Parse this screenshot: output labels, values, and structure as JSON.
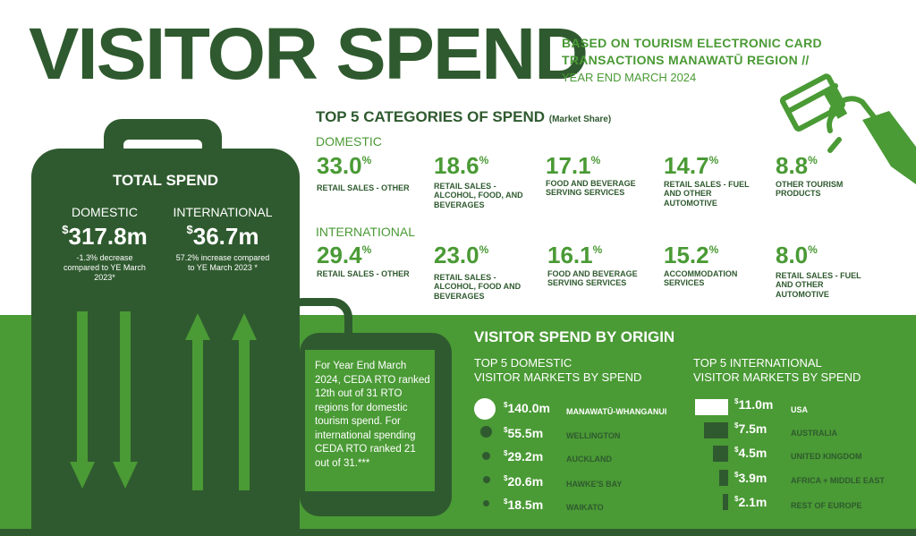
{
  "header": {
    "title": "VISITOR SPEND",
    "subtitle_line1": "BASED ON TOURISM ELECTRONIC CARD",
    "subtitle_line2": "TRANSACTIONS MANAWATŪ REGION //",
    "subtitle_line3": "YEAR END MARCH 2024"
  },
  "top5": {
    "title": "TOP 5 CATEGORIES OF SPEND",
    "title_note": "(Market Share)",
    "domestic_label": "DOMESTIC",
    "international_label": "INTERNATIONAL",
    "domestic": [
      {
        "value": "33.0",
        "label": "RETAIL SALES - OTHER"
      },
      {
        "value": "18.6",
        "label": "RETAIL SALES - ALCOHOL, FOOD, AND BEVERAGES"
      },
      {
        "value": "17.1",
        "label": "FOOD AND BEVERAGE SERVING SERVICES"
      },
      {
        "value": "14.7",
        "label": "RETAIL SALES - FUEL AND OTHER AUTOMOTIVE"
      },
      {
        "value": "8.8",
        "label": "OTHER TOURISM PRODUCTS"
      }
    ],
    "international": [
      {
        "value": "29.4",
        "label": "RETAIL SALES - OTHER"
      },
      {
        "value": "23.0",
        "label": "RETAIL SALES - ALCOHOL, FOOD AND BEVERAGES"
      },
      {
        "value": "16.1",
        "label": "FOOD AND BEVERAGE SERVING SERVICES"
      },
      {
        "value": "15.2",
        "label": "ACCOMMODATION SERVICES"
      },
      {
        "value": "8.0",
        "label": "RETAIL SALES - FUEL AND OTHER AUTOMOTIVE"
      }
    ],
    "pct_symbol": "%"
  },
  "total_spend": {
    "title": "TOTAL SPEND",
    "currency": "$",
    "domestic_label": "DOMESTIC",
    "domestic_value": "317.8m",
    "domestic_note": "-1.3% decrease compared to YE March 2023*",
    "international_label": "INTERNATIONAL",
    "international_value": "36.7m",
    "international_note": "57.2% increase compared to YE March 2023 *"
  },
  "ranking_note": "For Year End March 2024, CEDA RTO ranked 12th out of 31 RTO regions for domestic tourism spend. For international spending CEDA RTO ranked 21 out of 31.***",
  "origin": {
    "title": "VISITOR SPEND BY ORIGIN",
    "domestic_heading_1": "TOP 5 DOMESTIC",
    "domestic_heading_2": "VISITOR MARKETS BY SPEND",
    "international_heading_1": "TOP 5 INTERNATIONAL",
    "international_heading_2": "VISITOR MARKETS BY SPEND",
    "currency": "$",
    "domestic": [
      {
        "value": "140.0m",
        "name": "MANAWATŪ-WHANGANUI",
        "amount": 140.0
      },
      {
        "value": "55.5m",
        "name": "WELLINGTON",
        "amount": 55.5
      },
      {
        "value": "29.2m",
        "name": "AUCKLAND",
        "amount": 29.2
      },
      {
        "value": "20.6m",
        "name": "HAWKE'S BAY",
        "amount": 20.6
      },
      {
        "value": "18.5m",
        "name": "WAIKATO",
        "amount": 18.5
      }
    ],
    "international": [
      {
        "value": "11.0m",
        "name": "USA",
        "amount": 11.0
      },
      {
        "value": "7.5m",
        "name": "AUSTRALIA",
        "amount": 7.5
      },
      {
        "value": "4.5m",
        "name": "UNITED KINGDOM",
        "amount": 4.5
      },
      {
        "value": "3.9m",
        "name": "AFRICA + MIDDLE EAST",
        "amount": 3.9
      },
      {
        "value": "2.1m",
        "name": "REST OF EUROPE",
        "amount": 2.1
      }
    ]
  },
  "colors": {
    "dark_green": "#2f5a2f",
    "bright_green": "#4a9a35",
    "white": "#ffffff"
  },
  "icons": [
    "card-in-hand-icon",
    "down-arrow-icon",
    "up-arrow-icon"
  ]
}
